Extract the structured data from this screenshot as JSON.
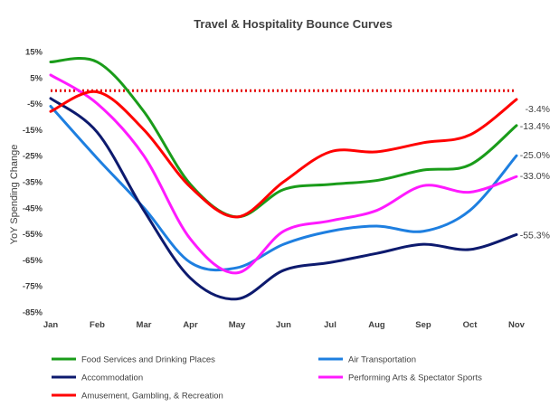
{
  "chart_data": {
    "type": "line",
    "title": "Travel & Hospitality Bounce Curves",
    "xlabel": "",
    "ylabel": "YoY Spending Change",
    "categories": [
      "Jan",
      "Feb",
      "Mar",
      "Apr",
      "May",
      "Jun",
      "Jul",
      "Aug",
      "Sep",
      "Oct",
      "Nov"
    ],
    "ylim": [
      -85,
      15
    ],
    "yticks": [
      15,
      5,
      -5,
      -15,
      -25,
      -35,
      -45,
      -55,
      -65,
      -75,
      -85
    ],
    "ytick_labels": [
      "15%",
      "5%",
      "-5%",
      "-15%",
      "-25%",
      "-35%",
      "-45%",
      "-55%",
      "-65%",
      "-75%",
      "-85%"
    ],
    "grid": false,
    "reference_line": {
      "value": 0,
      "color": "#e60000",
      "style": "dotted"
    },
    "legend_position": "bottom",
    "series": [
      {
        "name": "Food Services and Drinking Places",
        "color": "#1a9c1a",
        "values": [
          11,
          11,
          -8,
          -36,
          -48.5,
          -38,
          -36,
          -34.5,
          -30.5,
          -28.5,
          -13.4
        ],
        "end_label": "-13.4%"
      },
      {
        "name": "Air Transportation",
        "color": "#1e7fe0",
        "values": [
          -6,
          -26,
          -45,
          -66,
          -68,
          -59,
          -54,
          -52,
          -54,
          -46,
          -25.0
        ],
        "end_label": "-25.0%"
      },
      {
        "name": "Accommodation",
        "color": "#0d1a6e",
        "values": [
          -3,
          -16,
          -46,
          -72,
          -80,
          -69,
          -66,
          -62.5,
          -59,
          -61,
          -55.3
        ],
        "end_label": "-55.3%"
      },
      {
        "name": "Performing Arts & Spectator Sports",
        "color": "#ff1aff",
        "values": [
          6,
          -5,
          -25,
          -57,
          -70,
          -54,
          -50,
          -46,
          -36.5,
          -39,
          -33.0
        ],
        "end_label": "-33.0%"
      },
      {
        "name": "Amusement, Gambling, & Recreation",
        "color": "#ff0000",
        "values": [
          -8,
          -0.5,
          -15,
          -37,
          -48.5,
          -35,
          -23.5,
          -23.5,
          -20,
          -17,
          -3.4
        ],
        "end_label": "-3.4%"
      }
    ]
  }
}
